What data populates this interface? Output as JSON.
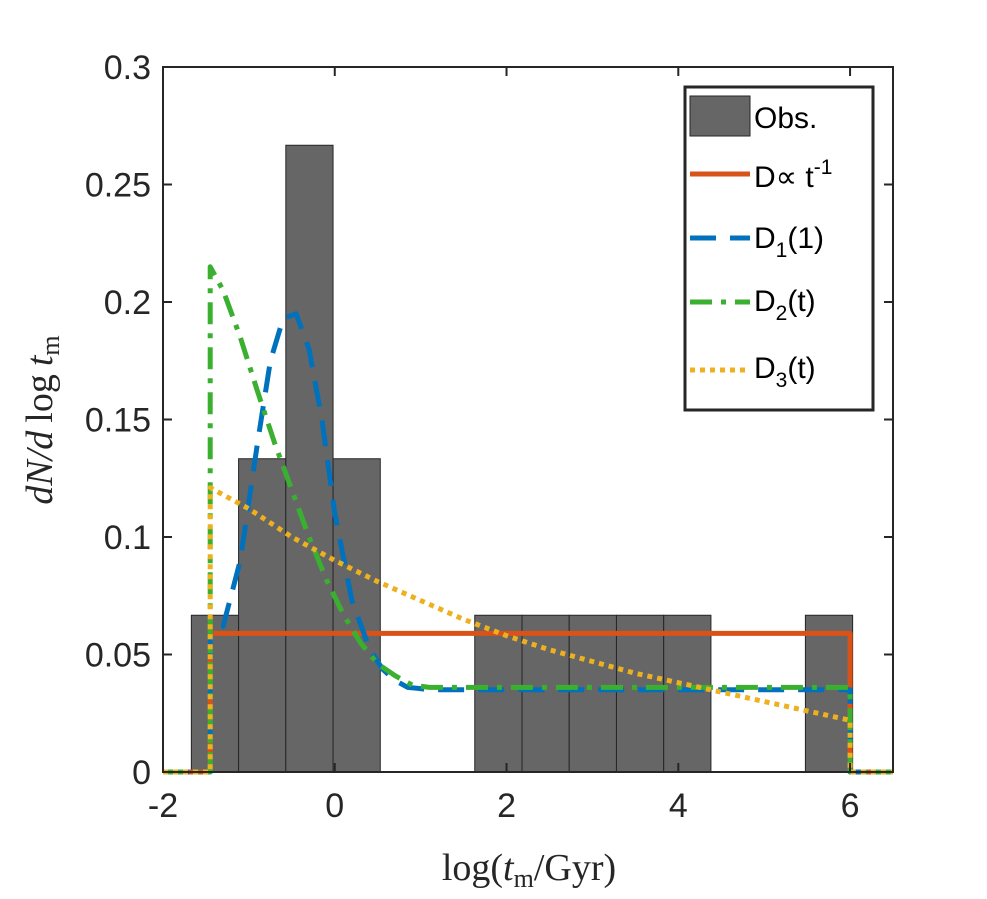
{
  "chart_data": {
    "type": "bar",
    "title": "",
    "xlabel": "log(t_m/Gyr)",
    "xlabel_parts": [
      "log(",
      "t",
      "m",
      "/Gyr)"
    ],
    "ylabel": "dN/d log t_m",
    "ylabel_parts": [
      "dN/d",
      "log",
      "t",
      "m"
    ],
    "xlim": [
      -2,
      6.5
    ],
    "ylim": [
      0,
      0.3
    ],
    "xticks": [
      -2,
      0,
      2,
      4,
      6
    ],
    "xtick_labels": [
      "-2",
      "0",
      "2",
      "4",
      "6"
    ],
    "yticks": [
      0,
      0.05,
      0.1,
      0.15,
      0.2,
      0.25,
      0.3
    ],
    "ytick_labels": [
      "0",
      "0.05",
      "0.1",
      "0.15",
      "0.2",
      "0.25",
      "0.3"
    ],
    "histogram": {
      "name": "Obs.",
      "color": "#666666",
      "bin_edges": [
        -1.67,
        -1.12,
        -0.57,
        -0.02,
        0.53,
        1.08,
        1.63,
        2.18,
        2.73,
        3.28,
        3.83,
        4.38,
        4.93,
        5.48,
        6.03
      ],
      "values": [
        0.0667,
        0.1333,
        0.2667,
        0.1333,
        0,
        0,
        0.0667,
        0.0667,
        0.0667,
        0.0667,
        0.0667,
        0,
        0,
        0.0667
      ]
    },
    "series": [
      {
        "name": "D∝ t^-1",
        "color": "#D95319",
        "dash": "solid",
        "x": [
          -2.0,
          -1.45,
          -1.45,
          6.0,
          6.0,
          6.5
        ],
        "y": [
          0,
          0,
          0.059,
          0.059,
          0,
          0
        ]
      },
      {
        "name": "D_1(1)",
        "color": "#0072BD",
        "dash": "dashed",
        "x": [
          -2.0,
          -1.45,
          -1.45,
          -1.3,
          -1.1,
          -0.9,
          -0.75,
          -0.6,
          -0.45,
          -0.3,
          -0.15,
          0.0,
          0.2,
          0.4,
          0.55,
          0.7,
          0.85,
          1.0,
          1.1,
          1.3,
          2,
          3,
          4,
          5,
          6.0,
          6.0,
          6.5
        ],
        "y": [
          0,
          0,
          0.06,
          0.062,
          0.09,
          0.14,
          0.175,
          0.193,
          0.195,
          0.18,
          0.15,
          0.11,
          0.073,
          0.053,
          0.044,
          0.039,
          0.036,
          0.0355,
          0.035,
          0.035,
          0.035,
          0.035,
          0.035,
          0.035,
          0.035,
          0,
          0
        ]
      },
      {
        "name": "D_2(t)",
        "color": "#3BB030",
        "dash": "dashdot",
        "x": [
          -2.0,
          -1.45,
          -1.45,
          -1.3,
          -1.1,
          -0.9,
          -0.7,
          -0.5,
          -0.3,
          -0.1,
          0.1,
          0.3,
          0.5,
          0.7,
          0.9,
          1.1,
          1.3,
          2,
          3,
          4,
          5,
          6.0,
          6.0,
          6.5
        ],
        "y": [
          0,
          0,
          0.215,
          0.205,
          0.185,
          0.162,
          0.14,
          0.12,
          0.1,
          0.082,
          0.067,
          0.055,
          0.046,
          0.041,
          0.037,
          0.036,
          0.036,
          0.036,
          0.036,
          0.036,
          0.036,
          0.036,
          0,
          0
        ]
      },
      {
        "name": "D_3(t)",
        "color": "#EDB120",
        "dash": "dotted",
        "x": [
          -2.0,
          -1.45,
          -1.45,
          -1.0,
          -0.5,
          0.0,
          0.5,
          1.0,
          1.5,
          2.0,
          2.5,
          3.0,
          3.5,
          4.0,
          4.5,
          5.0,
          5.5,
          6.0,
          6.0,
          6.5
        ],
        "y": [
          0,
          0,
          0.121,
          0.112,
          0.1,
          0.09,
          0.081,
          0.073,
          0.065,
          0.058,
          0.052,
          0.047,
          0.042,
          0.038,
          0.034,
          0.03,
          0.026,
          0.022,
          0,
          0
        ]
      }
    ],
    "legend": {
      "location": "top-right",
      "entries": [
        {
          "label": "Obs.",
          "base": "Obs.",
          "sub": "",
          "sup": "",
          "tail": ""
        },
        {
          "label": "D∝ t^-1",
          "base": "D∝ t",
          "sub": "",
          "sup": "-1",
          "tail": ""
        },
        {
          "label": "D_1(1)",
          "base": "D",
          "sub": "1",
          "sup": "",
          "tail": "(1)"
        },
        {
          "label": "D_2(t)",
          "base": "D",
          "sub": "2",
          "sup": "",
          "tail": "(t)"
        },
        {
          "label": "D_3(t)",
          "base": "D",
          "sub": "3",
          "sup": "",
          "tail": "(t)"
        }
      ]
    }
  }
}
